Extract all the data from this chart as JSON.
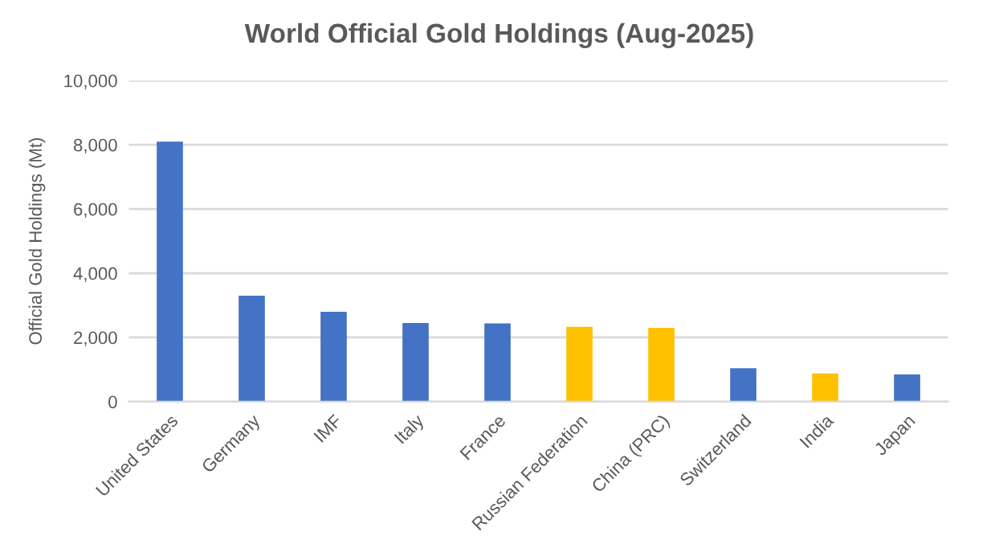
{
  "chart_data": {
    "type": "bar",
    "title": "World Official Gold Holdings (Aug-2025)",
    "ylabel": "Official Gold Holdings (Mt)",
    "categories": [
      "United States",
      "Germany",
      "IMF",
      "Italy",
      "France",
      "Russian Federation",
      "China (PRC)",
      "Switzerland",
      "India",
      "Japan"
    ],
    "values": [
      8100,
      3300,
      2800,
      2450,
      2440,
      2330,
      2300,
      1040,
      880,
      850
    ],
    "colors": [
      "#4472c4",
      "#4472c4",
      "#4472c4",
      "#4472c4",
      "#4472c4",
      "#ffc000",
      "#ffc000",
      "#4472c4",
      "#ffc000",
      "#4472c4"
    ],
    "ylim": [
      0,
      10000
    ],
    "yticks": [
      {
        "value": 0,
        "label": "0"
      },
      {
        "value": 2000,
        "label": "2,000"
      },
      {
        "value": 4000,
        "label": "4,000"
      },
      {
        "value": 6000,
        "label": "6,000"
      },
      {
        "value": 8000,
        "label": "8,000"
      },
      {
        "value": 10000,
        "label": "10,000"
      }
    ],
    "grid": "y",
    "legend": false
  }
}
